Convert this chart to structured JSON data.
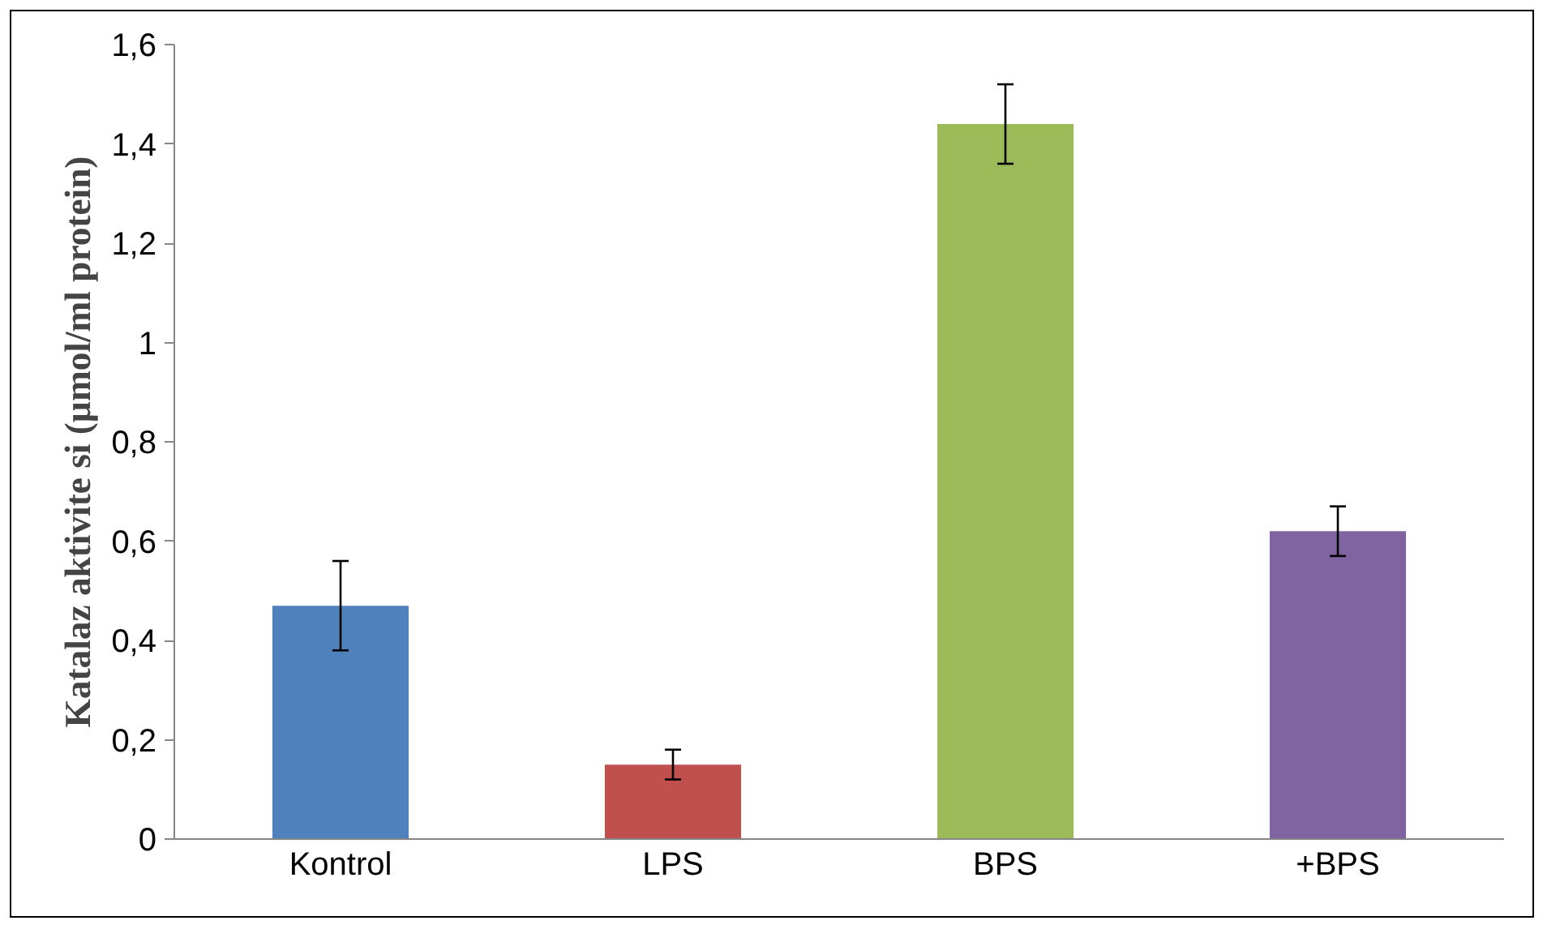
{
  "chart_data": {
    "type": "bar",
    "ylabel": "Katalaz aktivite si (µmol/ml protein)",
    "categories": [
      "Kontrol",
      "LPS",
      "BPS",
      "+BPS"
    ],
    "values": [
      0.47,
      0.15,
      1.44,
      0.62
    ],
    "errors": [
      0.09,
      0.03,
      0.08,
      0.05
    ],
    "colors": [
      "#4f81bd",
      "#c0504d",
      "#9bbb59",
      "#8064a2"
    ],
    "ylim": [
      0,
      1.6
    ],
    "yticks": [
      0,
      {
        "value": 0.2,
        "label": "0,2"
      },
      {
        "value": 0.4,
        "label": "0,4"
      },
      {
        "value": 0.6,
        "label": "0,6"
      },
      {
        "value": 0.8,
        "label": "0,8"
      },
      1,
      {
        "value": 1.2,
        "label": "1,2"
      },
      {
        "value": 1.4,
        "label": "1,4"
      },
      {
        "value": 1.6,
        "label": "1,6"
      }
    ],
    "grid": false
  }
}
